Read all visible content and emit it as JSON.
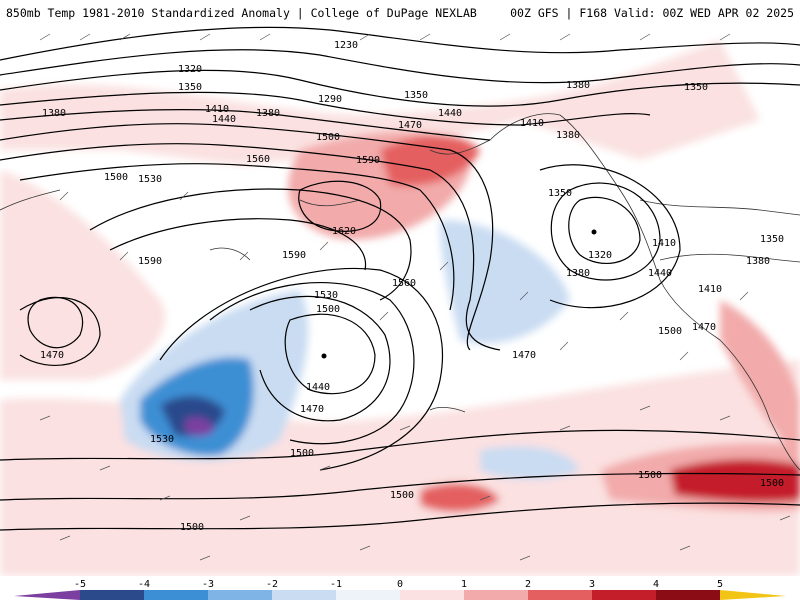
{
  "header": {
    "left_title": "850mb Temp 1981-2010 Standardized Anomaly | College of DuPage NEXLAB",
    "right_title": "00Z GFS | F168 Valid: 00Z WED APR 02 2025"
  },
  "colorbar": {
    "tick_labels": [
      "-5",
      "-4",
      "-3",
      "-2",
      "-1",
      "0",
      "1",
      "2",
      "3",
      "4",
      "5"
    ],
    "colors": [
      "#7b3fa0",
      "#2b4a8c",
      "#3c8fd4",
      "#7fb4e6",
      "#c9dcf2",
      "#eef3fa",
      "#fbe1e1",
      "#f2aaaa",
      "#e46060",
      "#c41e2a",
      "#8b0c14",
      "#f2c416"
    ]
  },
  "map": {
    "contour_labels": [
      "1230",
      "1320",
      "1350",
      "1380",
      "1290",
      "1350",
      "1380",
      "1350",
      "1410",
      "1440",
      "1380",
      "1470",
      "1440",
      "1410",
      "1380",
      "1500",
      "1530",
      "1560",
      "1590",
      "1620",
      "1500",
      "1590",
      "1590",
      "1560",
      "1350",
      "1320",
      "1410",
      "1380",
      "1350",
      "1380",
      "1440",
      "1410",
      "1470",
      "1530",
      "1500",
      "1470",
      "1440",
      "1470",
      "1500",
      "1500",
      "1470",
      "1530",
      "1500",
      "1500",
      "1500",
      "1500"
    ]
  }
}
